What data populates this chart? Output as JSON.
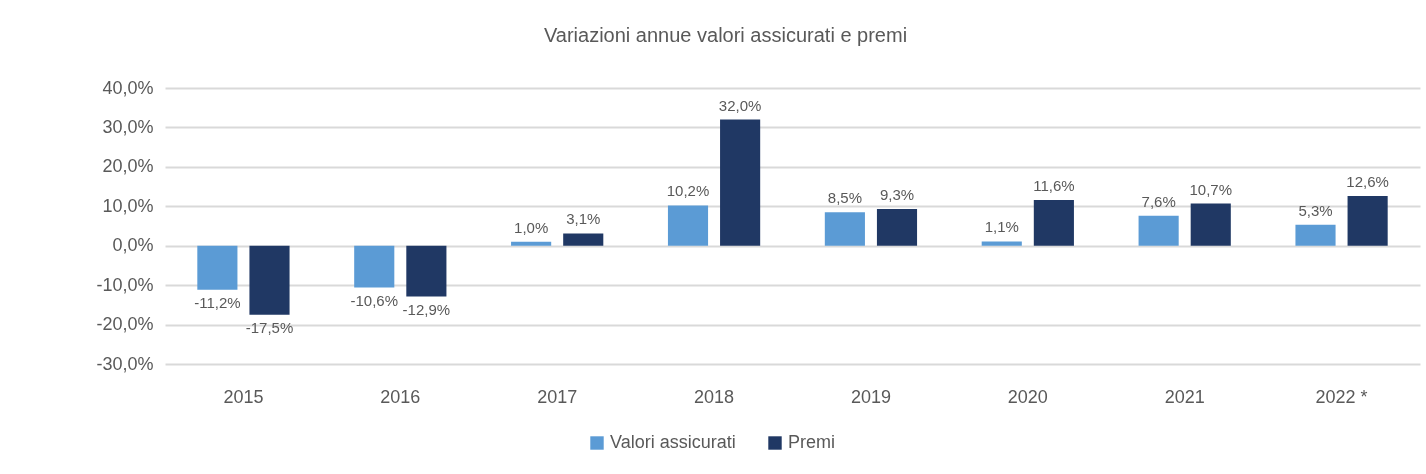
{
  "chart_data": {
    "type": "bar",
    "title": "Variazioni annue valori assicurati e premi",
    "categories": [
      "2015",
      "2016",
      "2017",
      "2018",
      "2019",
      "2020",
      "2021",
      "2022 *"
    ],
    "series": [
      {
        "name": "Valori assicurati",
        "color": "#5b9bd5",
        "values": [
          -11.2,
          -10.6,
          1.0,
          10.2,
          8.5,
          1.1,
          7.6,
          5.3
        ],
        "value_labels": [
          "-11,2%",
          "-10,6%",
          "1,0%",
          "10,2%",
          "8,5%",
          "1,1%",
          "7,6%",
          "5,3%"
        ]
      },
      {
        "name": "Premi",
        "color": "#203864",
        "values": [
          -17.5,
          -12.9,
          3.1,
          32.0,
          9.3,
          11.6,
          10.7,
          12.6
        ],
        "value_labels": [
          "-17,5%",
          "-12,9%",
          "3,1%",
          "32,0%",
          "9,3%",
          "11,6%",
          "10,7%",
          "12,6%"
        ]
      }
    ],
    "ylim": [
      -30,
      40
    ],
    "yticks": [
      {
        "value": -30,
        "label": "-30,0%"
      },
      {
        "value": -20,
        "label": "-20,0%"
      },
      {
        "value": -10,
        "label": "-10,0%"
      },
      {
        "value": 0,
        "label": "0,0%"
      },
      {
        "value": 10,
        "label": "10,0%"
      },
      {
        "value": 20,
        "label": "20,0%"
      },
      {
        "value": 30,
        "label": "30,0%"
      },
      {
        "value": 40,
        "label": "40,0%"
      }
    ],
    "grid": "y",
    "legend": "bottom"
  }
}
